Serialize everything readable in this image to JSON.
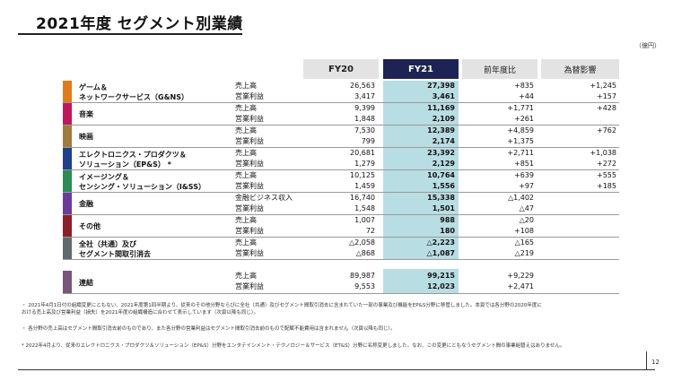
{
  "title": "2021年度 セグメント別業績",
  "unit": "（億円）",
  "columns": {
    "fy20": "FY20",
    "fy21": "FY21",
    "yoy": "前年度比",
    "fx": "為替影響"
  },
  "colors": {
    "fy21_header": "#1d2453",
    "fy21_column": "#b8dde3"
  },
  "segments": [
    {
      "name": "ゲーム＆\nネットワークサービス（G&NS）",
      "color": "#e07b1c",
      "rows": [
        {
          "label": "売上高",
          "fy20": "26,563",
          "fy21": "27,398",
          "yoy": "+835",
          "fx": "+1,245"
        },
        {
          "label": "営業利益",
          "fy20": "3,417",
          "fy21": "3,461",
          "yoy": "+44",
          "fx": "+157"
        }
      ]
    },
    {
      "name": "音楽",
      "color": "#c2185b",
      "rows": [
        {
          "label": "売上高",
          "fy20": "9,399",
          "fy21": "11,169",
          "yoy": "+1,771",
          "fx": "+428"
        },
        {
          "label": "営業利益",
          "fy20": "1,848",
          "fy21": "2,109",
          "yoy": "+261",
          "fx": ""
        }
      ]
    },
    {
      "name": "映画",
      "color": "#a07a3e",
      "rows": [
        {
          "label": "売上高",
          "fy20": "7,530",
          "fy21": "12,389",
          "yoy": "+4,859",
          "fx": "+762"
        },
        {
          "label": "営業利益",
          "fy20": "799",
          "fy21": "2,174",
          "yoy": "+1,375",
          "fx": ""
        }
      ]
    },
    {
      "name": "エレクトロニクス・プロダクツ＆\nソリューション（EP&S） *",
      "color": "#1f3f8a",
      "rows": [
        {
          "label": "売上高",
          "fy20": "20,681",
          "fy21": "23,392",
          "yoy": "+2,711",
          "fx": "+1,038"
        },
        {
          "label": "営業利益",
          "fy20": "1,279",
          "fy21": "2,129",
          "yoy": "+851",
          "fx": "+272"
        }
      ]
    },
    {
      "name": "イメージング＆\nセンシング・ソリューション（I&SS）",
      "color": "#2e8b57",
      "rows": [
        {
          "label": "売上高",
          "fy20": "10,125",
          "fy21": "10,764",
          "yoy": "+639",
          "fx": "+555"
        },
        {
          "label": "営業利益",
          "fy20": "1,459",
          "fy21": "1,556",
          "yoy": "+97",
          "fx": "+185"
        }
      ]
    },
    {
      "name": "金融",
      "color": "#6a3d9a",
      "rows": [
        {
          "label": "金融ビジネス収入",
          "fy20": "16,740",
          "fy21": "15,338",
          "yoy": "△1,402",
          "fx": ""
        },
        {
          "label": "営業利益",
          "fy20": "1,548",
          "fy21": "1,501",
          "yoy": "△47",
          "fx": ""
        }
      ]
    },
    {
      "name": "その他",
      "color": "#8a1f2b",
      "rows": [
        {
          "label": "売上高",
          "fy20": "1,007",
          "fy21": "988",
          "yoy": "△20",
          "fx": ""
        },
        {
          "label": "営業利益",
          "fy20": "72",
          "fy21": "180",
          "yoy": "+108",
          "fx": ""
        }
      ]
    },
    {
      "name": "全社（共通）及び\nセグメント間取引消去",
      "color": "#5f6b70",
      "rows": [
        {
          "label": "売上高",
          "fy20": "△2,058",
          "fy21": "△2,223",
          "yoy": "△165",
          "fx": ""
        },
        {
          "label": "営業利益",
          "fy20": "△868",
          "fy21": "△1,087",
          "yoy": "△219",
          "fx": ""
        }
      ]
    }
  ],
  "consolidated": {
    "name": "連結",
    "color": "#7a5678",
    "rows": [
      {
        "label": "売上高",
        "fy20": "89,987",
        "fy21": "99,215",
        "yoy": "+9,229",
        "fx": ""
      },
      {
        "label": "営業利益",
        "fy20": "9,553",
        "fy21": "12,023",
        "yoy": "+2,471",
        "fx": ""
      }
    ]
  },
  "notes": {
    "n1a": "・ 2021年4月1日付の組織変更にともない、2021年度第1四半期より、従来のその他分野ならびに全社（共通）及びセグメント間取引消去に含まれていた一部の事業及び機能をEP&S分野に移管しました。本頁では各分野の2020年度に",
    "n1b": "おける売上高及び営業利益（損失）を2021年度の組織構造に合わせて表示しています（次頁以降も同じ）。",
    "n2": "・ 各分野の売上高はセグメント間取引消去前のものであり、また各分野の営業利益はセグメント間取引消去前のもので配賦不能費用は含まれません（次頁以降も同じ）。",
    "n3": "* 2022年4月より、従来のエレクトロニクス・プロダクツ＆ソリューション（EP&S）分野をエンタテインメント・テクノロジー＆サービス（ET&S）分野に名称変更しました。なお、この変更にともなうセグメント間の事業組替えはありません。"
  },
  "page_number": "12"
}
